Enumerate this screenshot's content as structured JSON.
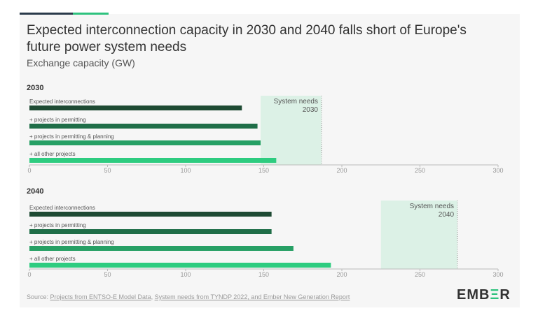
{
  "title": "Expected interconnection capacity in 2030 and 2040 falls short of Europe's future power system needs",
  "subtitle": "Exchange capacity (GW)",
  "source": {
    "prefix": "Source: ",
    "links": [
      "Projects from ENTSO-E Model Data",
      ", ",
      "System needs from TYNDP 2022",
      ", and Ember New Generation Report"
    ]
  },
  "logo": {
    "pre": "EMB",
    "mid": "Ξ",
    "post": "R"
  },
  "colors": [
    "#1e4a33",
    "#1f6e48",
    "#27a065",
    "#2ecc80"
  ],
  "shade_color": "#dcf1e6",
  "chart_data": [
    {
      "type": "bar",
      "orientation": "horizontal",
      "title": "2030",
      "categories": [
        "Expected interconnections",
        "+ projects in permitting",
        "+ projects in permitting & planning",
        "+ all other projects"
      ],
      "values": [
        136,
        146,
        148,
        158
      ],
      "xlim": [
        0,
        300
      ],
      "xticks": [
        0,
        50,
        100,
        150,
        200,
        250,
        300
      ],
      "annotation": {
        "label": [
          "System needs",
          "2030"
        ],
        "range": [
          148,
          187
        ]
      }
    },
    {
      "type": "bar",
      "orientation": "horizontal",
      "title": "2040",
      "categories": [
        "Expected interconnections",
        "+ projects in permitting",
        "+ projects in permitting & planning",
        "+ all other projects"
      ],
      "values": [
        155,
        155,
        169,
        193
      ],
      "xlim": [
        0,
        300
      ],
      "xticks": [
        0,
        50,
        100,
        150,
        200,
        250,
        300
      ],
      "annotation": {
        "label": [
          "System needs",
          "2040"
        ],
        "range": [
          225,
          274
        ]
      }
    }
  ]
}
